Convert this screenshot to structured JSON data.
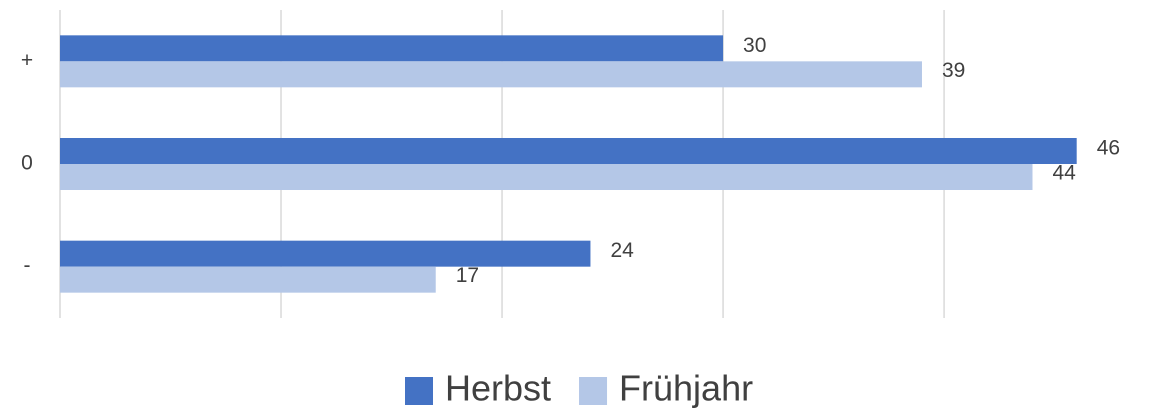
{
  "chart_data": {
    "type": "bar",
    "orientation": "horizontal",
    "categories": [
      "+",
      "0",
      "-"
    ],
    "series": [
      {
        "name": "Herbst",
        "color": "#4472c4",
        "values": [
          30,
          46,
          24
        ]
      },
      {
        "name": "Frühjahr",
        "color": "#b4c7e7",
        "values": [
          39,
          44,
          17
        ]
      }
    ],
    "xlim": [
      0,
      49
    ],
    "xticks": [
      0,
      10,
      20,
      30,
      40
    ],
    "show_tick_labels": false,
    "grid": true,
    "legend": "bottom"
  }
}
